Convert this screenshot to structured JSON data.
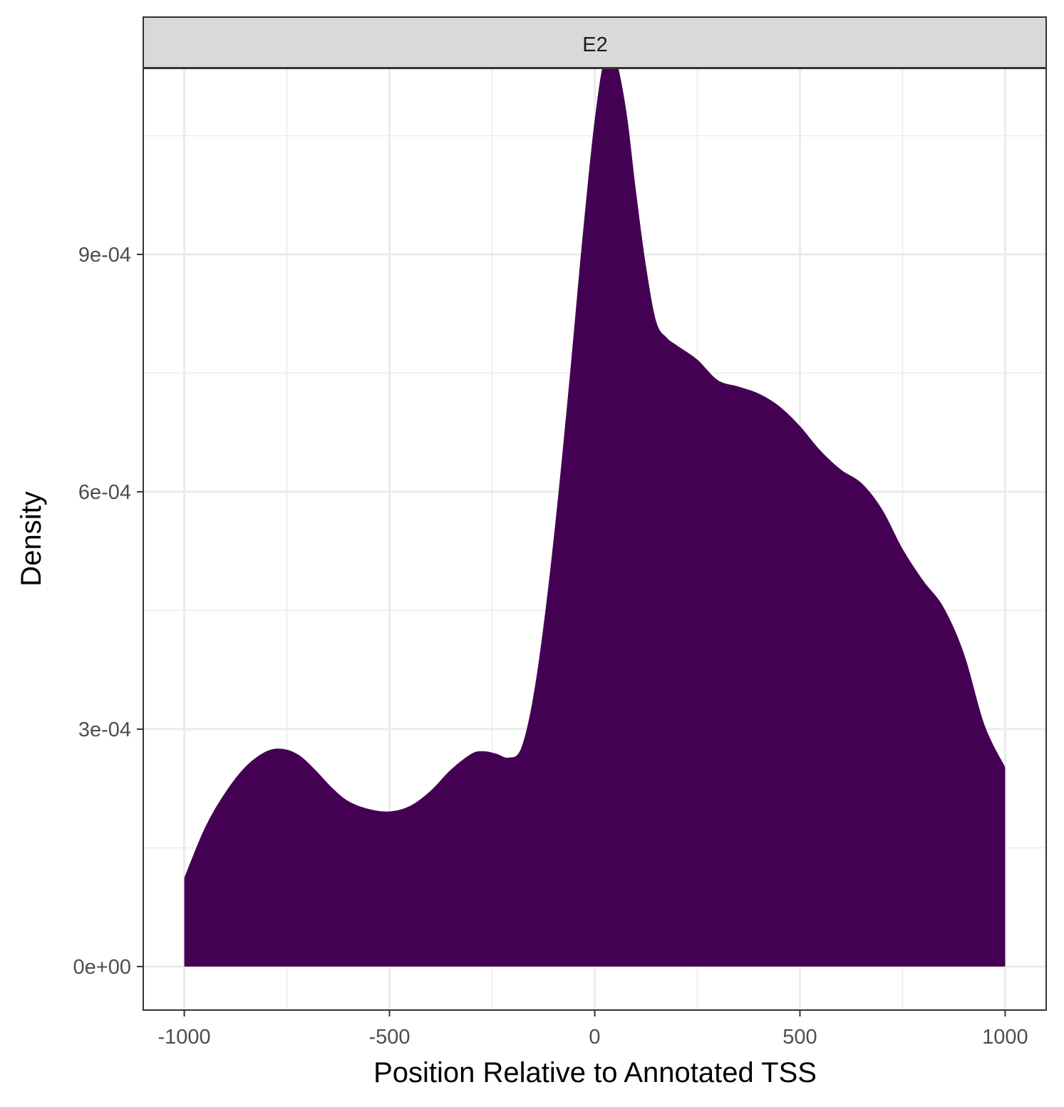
{
  "chart_data": {
    "type": "area",
    "facet": "E2",
    "xlabel": "Position Relative to Annotated TSS",
    "ylabel": "Density",
    "xlim": [
      -1100,
      1100
    ],
    "ylim": [
      -5.5e-05,
      0.001135
    ],
    "x_ticks": [
      -1000,
      -500,
      0,
      500,
      1000
    ],
    "x_tick_labels": [
      "-1000",
      "-500",
      "0",
      "500",
      "1000"
    ],
    "y_ticks": [
      0,
      0.0003,
      0.0006,
      0.0009
    ],
    "y_tick_labels": [
      "0e+00",
      "3e-04",
      "6e-04",
      "9e-04"
    ],
    "x_minor": [
      -750,
      -250,
      250,
      750
    ],
    "y_minor": [
      0.00015,
      0.00045,
      0.00075,
      0.00105
    ],
    "grid": true,
    "fill_color": "#440154",
    "series": [
      {
        "x": [
          -1000,
          -950,
          -900,
          -850,
          -800,
          -760,
          -720,
          -680,
          -640,
          -600,
          -550,
          -500,
          -450,
          -400,
          -350,
          -300,
          -270,
          -240,
          -210,
          -180,
          -150,
          -120,
          -90,
          -60,
          -30,
          0,
          25,
          50,
          60,
          80,
          100,
          125,
          150,
          175,
          200,
          250,
          300,
          350,
          400,
          450,
          500,
          550,
          600,
          650,
          700,
          750,
          800,
          850,
          900,
          950,
          1000
        ],
        "y": [
          0.000112,
          0.000175,
          0.00022,
          0.000253,
          0.000272,
          0.000275,
          0.000267,
          0.000248,
          0.000226,
          0.000209,
          0.000199,
          0.000196,
          0.000203,
          0.000222,
          0.000249,
          0.000269,
          0.000272,
          0.000269,
          0.000264,
          0.000275,
          0.00034,
          0.00045,
          0.00059,
          0.00075,
          0.00092,
          0.00107,
          0.001148,
          0.00114,
          0.00113,
          0.00107,
          0.000982,
          0.000885,
          0.000815,
          0.000795,
          0.000785,
          0.000767,
          0.000741,
          0.000733,
          0.000724,
          0.000708,
          0.000683,
          0.000652,
          0.000628,
          0.000611,
          0.000578,
          0.000528,
          0.000488,
          0.000454,
          0.000395,
          0.000305,
          0.000252
        ]
      }
    ]
  }
}
